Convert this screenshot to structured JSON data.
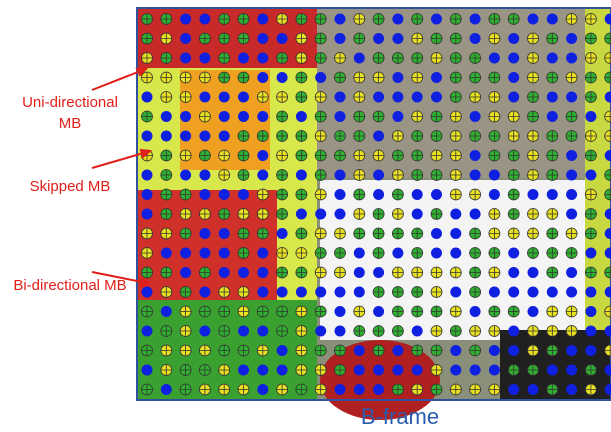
{
  "labels": [
    "Uni-directional MB",
    "Skipped MB",
    "Bi-directional MB"
  ],
  "caption": "B-frame"
}
